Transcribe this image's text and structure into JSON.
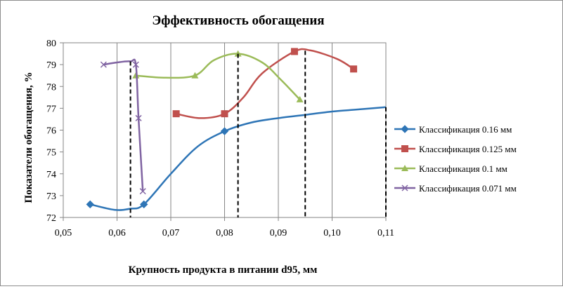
{
  "chart_data": {
    "type": "line",
    "title": "Эффективность обогащения",
    "xlabel": "Крупность продукта в питании d95, мм",
    "ylabel": "Показатели обогащения, %",
    "xlim": [
      0.05,
      0.11
    ],
    "ylim": [
      72,
      80
    ],
    "x_ticks": [
      "0,05",
      "0,06",
      "0,07",
      "0,08",
      "0,09",
      "0,10",
      "0,11"
    ],
    "y_ticks": [
      "72",
      "73",
      "74",
      "75",
      "76",
      "77",
      "78",
      "79",
      "80"
    ],
    "grid": "vertical",
    "legend_position": "right",
    "series": [
      {
        "name": "Классификация 0.16 мм",
        "color": "#2e75b6",
        "marker": "diamond",
        "points": [
          [
            0.055,
            72.6
          ],
          [
            0.065,
            72.6
          ],
          [
            0.08,
            75.95
          ]
        ],
        "curve": [
          [
            0.055,
            72.6
          ],
          [
            0.0595,
            72.35
          ],
          [
            0.0625,
            72.4
          ],
          [
            0.065,
            72.6
          ],
          [
            0.07,
            74.0
          ],
          [
            0.075,
            75.25
          ],
          [
            0.08,
            75.95
          ],
          [
            0.085,
            76.35
          ],
          [
            0.09,
            76.55
          ],
          [
            0.095,
            76.7
          ],
          [
            0.1,
            76.85
          ],
          [
            0.105,
            76.95
          ],
          [
            0.11,
            77.05
          ]
        ]
      },
      {
        "name": "Классификация 0.125 мм",
        "color": "#c0504d",
        "marker": "square",
        "points": [
          [
            0.071,
            76.75
          ],
          [
            0.08,
            76.75
          ],
          [
            0.093,
            79.6
          ],
          [
            0.104,
            78.8
          ]
        ],
        "curve": [
          [
            0.071,
            76.75
          ],
          [
            0.0755,
            76.55
          ],
          [
            0.08,
            76.75
          ],
          [
            0.0835,
            77.5
          ],
          [
            0.087,
            78.6
          ],
          [
            0.093,
            79.6
          ],
          [
            0.096,
            79.65
          ],
          [
            0.101,
            79.25
          ],
          [
            0.104,
            78.8
          ]
        ]
      },
      {
        "name": "Классификация 0.1 мм",
        "color": "#9bbb59",
        "marker": "triangle",
        "points": [
          [
            0.0635,
            78.5
          ],
          [
            0.0745,
            78.5
          ],
          [
            0.0825,
            79.5
          ],
          [
            0.094,
            77.4
          ]
        ],
        "curve": [
          [
            0.0635,
            78.5
          ],
          [
            0.069,
            78.4
          ],
          [
            0.0745,
            78.5
          ],
          [
            0.078,
            79.2
          ],
          [
            0.0825,
            79.5
          ],
          [
            0.087,
            79.1
          ],
          [
            0.0905,
            78.3
          ],
          [
            0.094,
            77.4
          ]
        ]
      },
      {
        "name": "Классификация 0.071 мм",
        "color": "#8064a2",
        "marker": "x",
        "points": [
          [
            0.0575,
            79.0
          ],
          [
            0.0635,
            79.0
          ],
          [
            0.064,
            76.55
          ],
          [
            0.0648,
            73.2
          ]
        ],
        "curve": [
          [
            0.0575,
            79.0
          ],
          [
            0.06,
            79.1
          ],
          [
            0.0625,
            79.15
          ],
          [
            0.0635,
            79.0
          ],
          [
            0.064,
            76.55
          ],
          [
            0.0648,
            73.2
          ]
        ]
      }
    ],
    "reference_lines_x": [
      0.0625,
      0.0825,
      0.095,
      0.11
    ]
  }
}
